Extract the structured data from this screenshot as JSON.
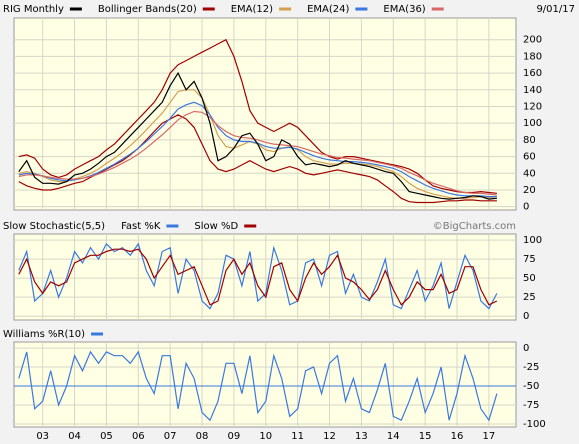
{
  "chart_data": [
    {
      "type": "line",
      "date": "9/01/17",
      "x": [
        2002.75,
        2003,
        2003.25,
        2003.5,
        2003.75,
        2004,
        2004.25,
        2004.5,
        2004.75,
        2005,
        2005.25,
        2005.5,
        2005.75,
        2006,
        2006.25,
        2006.5,
        2006.75,
        2007,
        2007.25,
        2007.5,
        2007.75,
        2008,
        2008.25,
        2008.5,
        2008.75,
        2009,
        2009.25,
        2009.5,
        2009.75,
        2010,
        2010.25,
        2010.5,
        2010.75,
        2011,
        2011.25,
        2011.5,
        2011.75,
        2012,
        2012.25,
        2012.5,
        2012.75,
        2013,
        2013.25,
        2013.5,
        2013.75,
        2014,
        2014.25,
        2014.5,
        2014.75,
        2015,
        2015.25,
        2015.5,
        2015.75,
        2016,
        2016.25,
        2016.5,
        2016.75,
        2017,
        2017.25,
        2017.5,
        2017.75
      ],
      "xlim": [
        2002.6,
        2018.35
      ],
      "ylim": [
        -4,
        226
      ],
      "yticks": [
        0,
        20,
        40,
        60,
        80,
        100,
        120,
        140,
        160,
        180,
        200
      ],
      "grid": true,
      "series": [
        {
          "name": "RIG Monthly",
          "color": "#000000",
          "values": [
            42,
            55,
            35,
            28,
            28,
            27,
            30,
            38,
            40,
            45,
            52,
            60,
            65,
            75,
            85,
            95,
            105,
            115,
            125,
            145,
            160,
            140,
            150,
            130,
            100,
            55,
            60,
            70,
            85,
            88,
            75,
            55,
            60,
            80,
            75,
            60,
            50,
            52,
            50,
            48,
            50,
            55,
            52,
            50,
            48,
            45,
            42,
            40,
            30,
            18,
            16,
            14,
            12,
            10,
            9,
            10,
            11,
            13,
            12,
            9,
            10
          ]
        },
        {
          "name": "Bollinger Bands(20)",
          "color": "#a00000",
          "upper": [
            60,
            62,
            58,
            45,
            38,
            35,
            38,
            45,
            50,
            55,
            60,
            68,
            75,
            85,
            95,
            105,
            115,
            125,
            140,
            160,
            170,
            175,
            180,
            185,
            190,
            195,
            200,
            180,
            150,
            115,
            100,
            95,
            90,
            95,
            100,
            95,
            85,
            75,
            65,
            60,
            57,
            60,
            60,
            58,
            56,
            54,
            52,
            50,
            48,
            45,
            40,
            32,
            25,
            22,
            20,
            18,
            17,
            17,
            18,
            17,
            16
          ],
          "lower": [
            30,
            25,
            22,
            20,
            20,
            22,
            25,
            28,
            30,
            35,
            40,
            45,
            50,
            55,
            62,
            70,
            80,
            90,
            100,
            105,
            110,
            105,
            95,
            75,
            55,
            45,
            42,
            45,
            50,
            55,
            50,
            45,
            42,
            45,
            48,
            45,
            40,
            38,
            40,
            42,
            44,
            42,
            40,
            38,
            36,
            32,
            25,
            18,
            10,
            6,
            5,
            5,
            5,
            6,
            7,
            7,
            8,
            8,
            7,
            7,
            7
          ]
        },
        {
          "name": "EMA(12)",
          "color": "#d4a050",
          "values": [
            40,
            42,
            40,
            36,
            32,
            30,
            30,
            33,
            36,
            40,
            45,
            52,
            58,
            65,
            73,
            82,
            92,
            102,
            112,
            125,
            138,
            140,
            140,
            130,
            110,
            85,
            72,
            70,
            74,
            78,
            75,
            68,
            66,
            70,
            72,
            68,
            60,
            55,
            53,
            51,
            51,
            52,
            52,
            51,
            50,
            48,
            45,
            42,
            36,
            28,
            22,
            18,
            15,
            13,
            11,
            10,
            10,
            11,
            12,
            11,
            10
          ]
        },
        {
          "name": "EMA(24)",
          "color": "#3a78e0",
          "values": [
            38,
            40,
            39,
            37,
            34,
            32,
            31,
            32,
            34,
            37,
            41,
            46,
            51,
            57,
            63,
            70,
            78,
            87,
            96,
            106,
            117,
            122,
            125,
            121,
            110,
            95,
            85,
            80,
            78,
            78,
            76,
            72,
            70,
            70,
            71,
            69,
            65,
            61,
            58,
            56,
            55,
            54,
            54,
            53,
            52,
            50,
            48,
            46,
            42,
            36,
            31,
            26,
            22,
            19,
            16,
            14,
            13,
            13,
            13,
            12,
            12
          ]
        },
        {
          "name": "EMA(36)",
          "color": "#d86868",
          "values": [
            36,
            38,
            38,
            37,
            35,
            34,
            33,
            33,
            34,
            36,
            39,
            43,
            47,
            52,
            57,
            63,
            70,
            78,
            86,
            95,
            104,
            110,
            114,
            113,
            107,
            97,
            90,
            85,
            83,
            82,
            80,
            77,
            75,
            74,
            73,
            72,
            69,
            66,
            63,
            61,
            59,
            58,
            57,
            56,
            55,
            53,
            51,
            49,
            46,
            41,
            37,
            32,
            28,
            25,
            22,
            19,
            17,
            16,
            16,
            15,
            14
          ]
        }
      ]
    },
    {
      "type": "line",
      "title": "Slow Stochastic(5,5)",
      "credit": "©BigCharts.com",
      "xlim": [
        2002.6,
        2018.35
      ],
      "ylim": [
        -5,
        108
      ],
      "yticks": [
        0,
        25,
        50,
        75,
        100
      ],
      "grid": true,
      "series": [
        {
          "name": "Fast %K",
          "color": "#3a78e0",
          "values": [
            60,
            85,
            20,
            30,
            60,
            25,
            50,
            85,
            70,
            90,
            75,
            95,
            85,
            90,
            80,
            95,
            60,
            40,
            85,
            90,
            30,
            75,
            60,
            20,
            10,
            30,
            80,
            75,
            40,
            85,
            20,
            30,
            90,
            60,
            15,
            20,
            70,
            75,
            40,
            80,
            85,
            30,
            55,
            25,
            20,
            45,
            75,
            15,
            10,
            35,
            60,
            20,
            40,
            70,
            10,
            45,
            80,
            60,
            20,
            10,
            30
          ]
        },
        {
          "name": "Slow %D",
          "color": "#a00000",
          "values": [
            55,
            75,
            45,
            30,
            45,
            40,
            45,
            70,
            75,
            80,
            80,
            85,
            88,
            88,
            85,
            88,
            75,
            50,
            65,
            80,
            55,
            60,
            65,
            40,
            15,
            20,
            60,
            75,
            55,
            70,
            40,
            25,
            65,
            70,
            35,
            20,
            50,
            70,
            55,
            65,
            80,
            50,
            45,
            35,
            22,
            35,
            60,
            35,
            15,
            25,
            45,
            35,
            35,
            55,
            30,
            35,
            65,
            65,
            35,
            15,
            20
          ]
        }
      ]
    },
    {
      "type": "line",
      "xlim": [
        2002.6,
        2018.35
      ],
      "ylim": [
        -104,
        8
      ],
      "yticks": [
        0,
        -25,
        -50,
        -75,
        -100
      ],
      "hline": -50,
      "hline_color": "#3a78e0",
      "grid": true,
      "xticks": [
        {
          "value": 2003.5,
          "label": "03"
        },
        {
          "value": 2004.5,
          "label": "04"
        },
        {
          "value": 2005.5,
          "label": "05"
        },
        {
          "value": 2006.5,
          "label": "06"
        },
        {
          "value": 2007.5,
          "label": "07"
        },
        {
          "value": 2008.5,
          "label": "08"
        },
        {
          "value": 2009.5,
          "label": "09"
        },
        {
          "value": 2010.5,
          "label": "10"
        },
        {
          "value": 2011.5,
          "label": "11"
        },
        {
          "value": 2012.5,
          "label": "12"
        },
        {
          "value": 2013.5,
          "label": "13"
        },
        {
          "value": 2014.5,
          "label": "14"
        },
        {
          "value": 2015.5,
          "label": "15"
        },
        {
          "value": 2016.5,
          "label": "16"
        },
        {
          "value": 2017.5,
          "label": "17"
        }
      ],
      "series": [
        {
          "name": "Williams %R(10)",
          "color": "#3a78e0",
          "values": [
            -40,
            -5,
            -80,
            -70,
            -30,
            -75,
            -50,
            -10,
            -30,
            -5,
            -20,
            -5,
            -10,
            -10,
            -20,
            -5,
            -40,
            -60,
            -10,
            -10,
            -80,
            -20,
            -40,
            -85,
            -95,
            -70,
            -20,
            -20,
            -60,
            -10,
            -85,
            -70,
            -10,
            -40,
            -90,
            -80,
            -30,
            -25,
            -60,
            -20,
            -10,
            -70,
            -40,
            -80,
            -85,
            -55,
            -20,
            -90,
            -95,
            -70,
            -40,
            -85,
            -60,
            -25,
            -95,
            -60,
            -10,
            -40,
            -80,
            -95,
            -60
          ]
        }
      ]
    }
  ]
}
